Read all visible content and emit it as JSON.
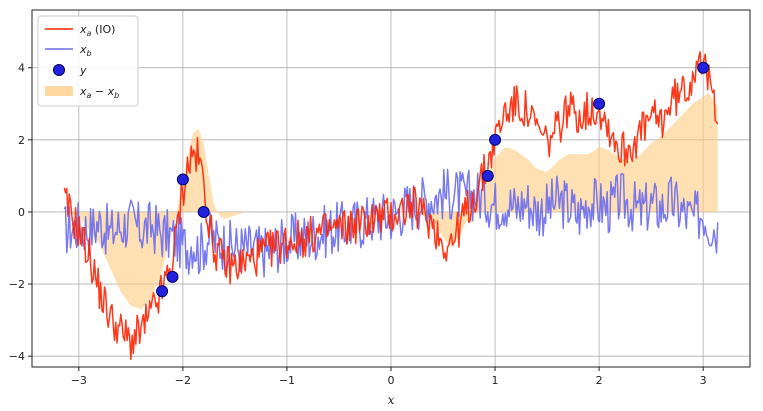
{
  "chart_data": {
    "type": "line",
    "title": "",
    "xlabel": "x",
    "ylabel": "",
    "xlim": [
      -3.45,
      3.45
    ],
    "ylim": [
      -4.3,
      5.6
    ],
    "xticks": [
      -3,
      -2,
      -1,
      0,
      1,
      2,
      3
    ],
    "xtick_labels": [
      "−3",
      "−2",
      "−1",
      "0",
      "1",
      "2",
      "3"
    ],
    "yticks": [
      -4,
      -2,
      0,
      2,
      4
    ],
    "ytick_labels": [
      "−4",
      "−2",
      "0",
      "2",
      "4"
    ],
    "grid": true,
    "legend": {
      "placement": "top-left",
      "entries": [
        {
          "key": "xa",
          "label": "xₐ (IO)",
          "marker": "line",
          "color": "#ff2200"
        },
        {
          "key": "xb",
          "label": "x_b",
          "marker": "line",
          "color": "#6b6bee"
        },
        {
          "key": "y",
          "label": "y",
          "marker": "circle",
          "color": "#2222dd"
        },
        {
          "key": "fill",
          "label": "xₐ − x_b",
          "marker": "patch",
          "color": "#ffcc80"
        }
      ]
    },
    "series": [
      {
        "name": "xₐ (IO)",
        "color": "#ff2200",
        "x": [
          -3.14,
          -3.0,
          -2.9,
          -2.8,
          -2.7,
          -2.6,
          -2.5,
          -2.4,
          -2.3,
          -2.2,
          -2.1,
          -2.05,
          -2.0,
          -1.95,
          -1.9,
          -1.85,
          -1.8,
          -1.75,
          -1.7,
          -1.6,
          -1.5,
          -1.4,
          -1.2,
          -1.0,
          -0.8,
          -0.6,
          -0.4,
          -0.2,
          0.0,
          0.2,
          0.4,
          0.5,
          0.6,
          0.7,
          0.8,
          0.9,
          1.0,
          1.1,
          1.2,
          1.3,
          1.4,
          1.5,
          1.6,
          1.7,
          1.8,
          1.9,
          2.0,
          2.1,
          2.2,
          2.3,
          2.4,
          2.5,
          2.6,
          2.7,
          2.8,
          2.9,
          2.95,
          3.0,
          3.05,
          3.1,
          3.14
        ],
        "y": [
          0.3,
          -0.5,
          -1.2,
          -2.2,
          -2.9,
          -3.3,
          -3.6,
          -3.3,
          -2.8,
          -2.2,
          -1.4,
          -0.3,
          0.6,
          1.3,
          1.6,
          1.5,
          0.8,
          -0.3,
          -1.0,
          -1.4,
          -1.5,
          -1.4,
          -1.1,
          -0.8,
          -0.7,
          -0.5,
          -0.4,
          -0.2,
          -0.1,
          0.2,
          -0.3,
          -0.9,
          -0.8,
          -0.1,
          0.4,
          1.1,
          2.0,
          2.8,
          3.0,
          2.8,
          2.3,
          1.9,
          2.3,
          2.9,
          2.7,
          2.8,
          2.9,
          2.3,
          1.7,
          1.8,
          2.2,
          2.6,
          2.5,
          3.1,
          3.3,
          3.7,
          4.6,
          4.0,
          3.6,
          3.2,
          2.8
        ]
      },
      {
        "name": "x_b",
        "color": "#6b6bee",
        "x": [
          -3.14,
          -3.0,
          -2.9,
          -2.8,
          -2.7,
          -2.6,
          -2.5,
          -2.4,
          -2.3,
          -2.2,
          -2.1,
          -2.05,
          -2.0,
          -1.95,
          -1.9,
          -1.85,
          -1.8,
          -1.75,
          -1.7,
          -1.6,
          -1.5,
          -1.4,
          -1.2,
          -1.0,
          -0.8,
          -0.6,
          -0.4,
          -0.2,
          0.0,
          0.2,
          0.4,
          0.5,
          0.6,
          0.7,
          0.8,
          0.9,
          1.0,
          1.1,
          1.2,
          1.3,
          1.4,
          1.5,
          1.6,
          1.7,
          1.8,
          1.9,
          2.0,
          2.1,
          2.2,
          2.3,
          2.4,
          2.5,
          2.6,
          2.7,
          2.8,
          2.9,
          2.95,
          3.0,
          3.05,
          3.1,
          3.14
        ],
        "y": [
          -0.5,
          -0.4,
          -0.5,
          -0.3,
          -0.6,
          -0.4,
          -0.3,
          -0.5,
          -0.4,
          -0.6,
          -0.7,
          -0.8,
          -0.9,
          -1.0,
          -0.8,
          -1.1,
          -0.9,
          -0.7,
          -0.8,
          -0.9,
          -1.0,
          -1.0,
          -1.1,
          -0.8,
          -0.7,
          -0.5,
          -0.4,
          -0.2,
          -0.1,
          0.2,
          0.4,
          0.5,
          0.5,
          0.4,
          0.5,
          0.4,
          0.2,
          0.3,
          0.1,
          0.3,
          0.0,
          0.1,
          0.3,
          0.2,
          -0.1,
          0.3,
          0.2,
          0.1,
          0.4,
          0.2,
          0.0,
          0.2,
          0.1,
          0.3,
          0.0,
          -0.2,
          -0.1,
          0.0,
          -0.3,
          -0.4,
          -0.5
        ]
      }
    ],
    "y_points": [
      {
        "x": -2.2,
        "y": -2.2
      },
      {
        "x": -2.1,
        "y": -1.8
      },
      {
        "x": -2.0,
        "y": 0.9
      },
      {
        "x": -1.8,
        "y": 0.0
      },
      {
        "x": 0.93,
        "y": 1.0
      },
      {
        "x": 1.0,
        "y": 2.0
      },
      {
        "x": 2.0,
        "y": 3.0
      },
      {
        "x": 3.0,
        "y": 4.0
      }
    ],
    "fill_between": {
      "name": "xₐ − x_b",
      "color": "#ffcc80",
      "x": [
        -3.14,
        -3.0,
        -2.8,
        -2.6,
        -2.5,
        -2.4,
        -2.3,
        -2.2,
        -2.1,
        -2.0,
        -1.95,
        -1.9,
        -1.85,
        -1.8,
        -1.75,
        -1.7,
        -1.65,
        -1.6,
        -1.5,
        -1.4,
        -1.2,
        -1.0,
        -0.8,
        -0.6,
        -0.4,
        -0.2,
        0.0,
        0.2,
        0.4,
        0.5,
        0.55,
        0.6,
        0.65,
        0.7,
        0.8,
        0.9,
        1.0,
        1.1,
        1.2,
        1.3,
        1.4,
        1.5,
        1.6,
        1.7,
        1.8,
        1.9,
        2.0,
        2.1,
        2.2,
        2.3,
        2.4,
        2.5,
        2.6,
        2.7,
        2.8,
        2.9,
        3.0,
        3.05,
        3.1,
        3.14
      ],
      "y": [
        0.0,
        -0.1,
        -0.9,
        -2.2,
        -2.6,
        -2.7,
        -2.4,
        -1.6,
        -0.5,
        0.8,
        1.6,
        2.2,
        2.3,
        1.9,
        1.0,
        0.2,
        -0.1,
        -0.2,
        -0.1,
        0.0,
        0.0,
        0.0,
        0.0,
        0.0,
        0.0,
        0.0,
        0.0,
        0.0,
        -0.2,
        -0.7,
        -0.9,
        -0.9,
        -0.7,
        -0.4,
        0.1,
        0.7,
        1.5,
        1.8,
        1.7,
        1.5,
        1.2,
        1.1,
        1.4,
        1.6,
        1.6,
        1.6,
        1.8,
        1.7,
        1.5,
        1.4,
        1.6,
        1.9,
        2.1,
        2.4,
        2.7,
        3.0,
        3.2,
        3.3,
        3.1,
        2.9
      ]
    }
  }
}
